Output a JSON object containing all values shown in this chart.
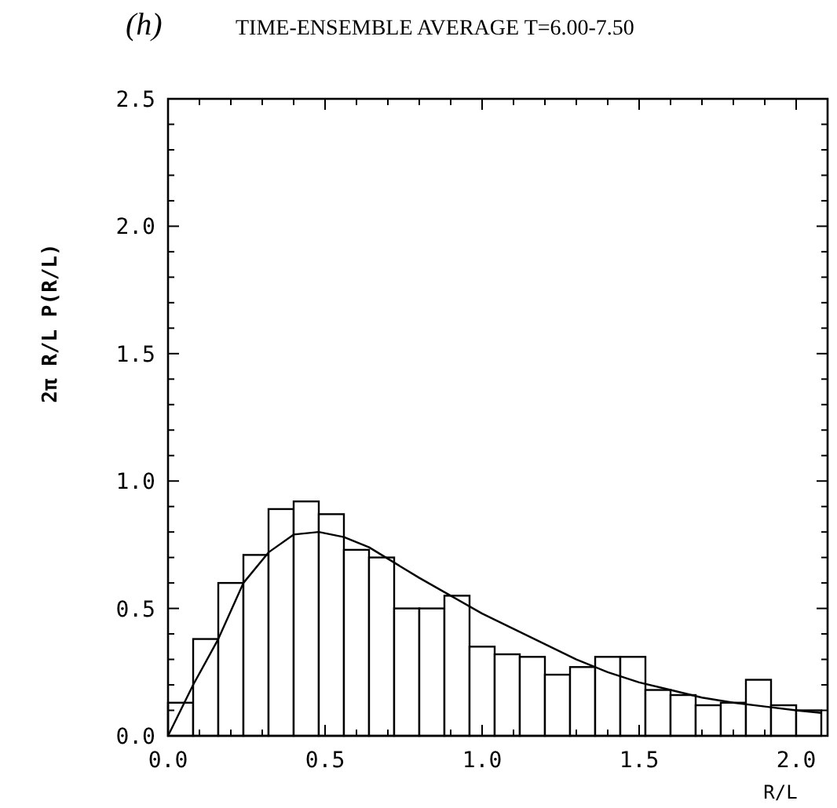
{
  "chart_data": {
    "type": "histogram",
    "title": "TIME-ENSEMBLE AVERAGE T=6.00-7.50",
    "annotations": [
      "(h)"
    ],
    "xlabel": "R/L",
    "ylabel": "2π R/L P(R/L)",
    "bins": [
      0,
      0.08,
      0.16,
      0.24,
      0.32,
      0.4,
      0.48,
      0.56,
      0.64,
      0.72,
      0.8,
      0.88,
      0.96,
      1.04,
      1.12,
      1.2,
      1.28,
      1.36,
      1.44,
      1.52,
      1.6,
      1.68,
      1.76,
      1.84,
      1.92,
      2.0,
      2.08
    ],
    "values": [
      0.13,
      0.38,
      0.6,
      0.71,
      0.89,
      0.92,
      0.87,
      0.73,
      0.7,
      0.5,
      0.5,
      0.55,
      0.35,
      0.32,
      0.31,
      0.24,
      0.27,
      0.31,
      0.31,
      0.18,
      0.16,
      0.12,
      0.13,
      0.22,
      0.12,
      0.1
    ],
    "color": "#000000",
    "series": [
      {
        "type": "line",
        "color": "#000000",
        "x": [
          0,
          0.08,
          0.16,
          0.24,
          0.32,
          0.4,
          0.48,
          0.56,
          0.64,
          0.72,
          0.8,
          0.9,
          1.0,
          1.1,
          1.2,
          1.3,
          1.4,
          1.5,
          1.6,
          1.7,
          1.8,
          1.9,
          2.0,
          2.08
        ],
        "values": [
          0,
          0.2,
          0.38,
          0.6,
          0.72,
          0.79,
          0.8,
          0.78,
          0.74,
          0.68,
          0.62,
          0.55,
          0.48,
          0.42,
          0.36,
          0.3,
          0.25,
          0.21,
          0.18,
          0.15,
          0.13,
          0.115,
          0.1,
          0.09
        ]
      }
    ],
    "xlim": [
      0,
      2.1
    ],
    "ylim": [
      0,
      2.5
    ],
    "xticks": [
      {
        "value": 0,
        "label": "0.0"
      },
      {
        "value": 0.1,
        "label": null
      },
      {
        "value": 0.2,
        "label": null
      },
      {
        "value": 0.3,
        "label": null
      },
      {
        "value": 0.4,
        "label": null
      },
      {
        "value": 0.5,
        "label": "0.5"
      },
      {
        "value": 0.6,
        "label": null
      },
      {
        "value": 0.7,
        "label": null
      },
      {
        "value": 0.8,
        "label": null
      },
      {
        "value": 0.9,
        "label": null
      },
      {
        "value": 1,
        "label": "1.0"
      },
      {
        "value": 1.1,
        "label": null
      },
      {
        "value": 1.2,
        "label": null
      },
      {
        "value": 1.3,
        "label": null
      },
      {
        "value": 1.4,
        "label": null
      },
      {
        "value": 1.5,
        "label": "1.5"
      },
      {
        "value": 1.6,
        "label": null
      },
      {
        "value": 1.7,
        "label": null
      },
      {
        "value": 1.8,
        "label": null
      },
      {
        "value": 1.9,
        "label": null
      },
      {
        "value": 2,
        "label": "2.0"
      }
    ],
    "yticks": [
      {
        "value": 0,
        "label": "0.0"
      },
      {
        "value": 0.1,
        "label": null
      },
      {
        "value": 0.2,
        "label": null
      },
      {
        "value": 0.3,
        "label": null
      },
      {
        "value": 0.4,
        "label": null
      },
      {
        "value": 0.5,
        "label": "0.5"
      },
      {
        "value": 0.6,
        "label": null
      },
      {
        "value": 0.7,
        "label": null
      },
      {
        "value": 0.8,
        "label": null
      },
      {
        "value": 0.9,
        "label": null
      },
      {
        "value": 1,
        "label": "1.0"
      },
      {
        "value": 1.1,
        "label": null
      },
      {
        "value": 1.2,
        "label": null
      },
      {
        "value": 1.3,
        "label": null
      },
      {
        "value": 1.4,
        "label": null
      },
      {
        "value": 1.5,
        "label": "1.5"
      },
      {
        "value": 1.6,
        "label": null
      },
      {
        "value": 1.7,
        "label": null
      },
      {
        "value": 1.8,
        "label": null
      },
      {
        "value": 1.9,
        "label": null
      },
      {
        "value": 2,
        "label": "2.0"
      },
      {
        "value": 2.1,
        "label": null
      },
      {
        "value": 2.2,
        "label": null
      },
      {
        "value": 2.3,
        "label": null
      },
      {
        "value": 2.4,
        "label": null
      },
      {
        "value": 2.5,
        "label": "2.5"
      }
    ]
  }
}
